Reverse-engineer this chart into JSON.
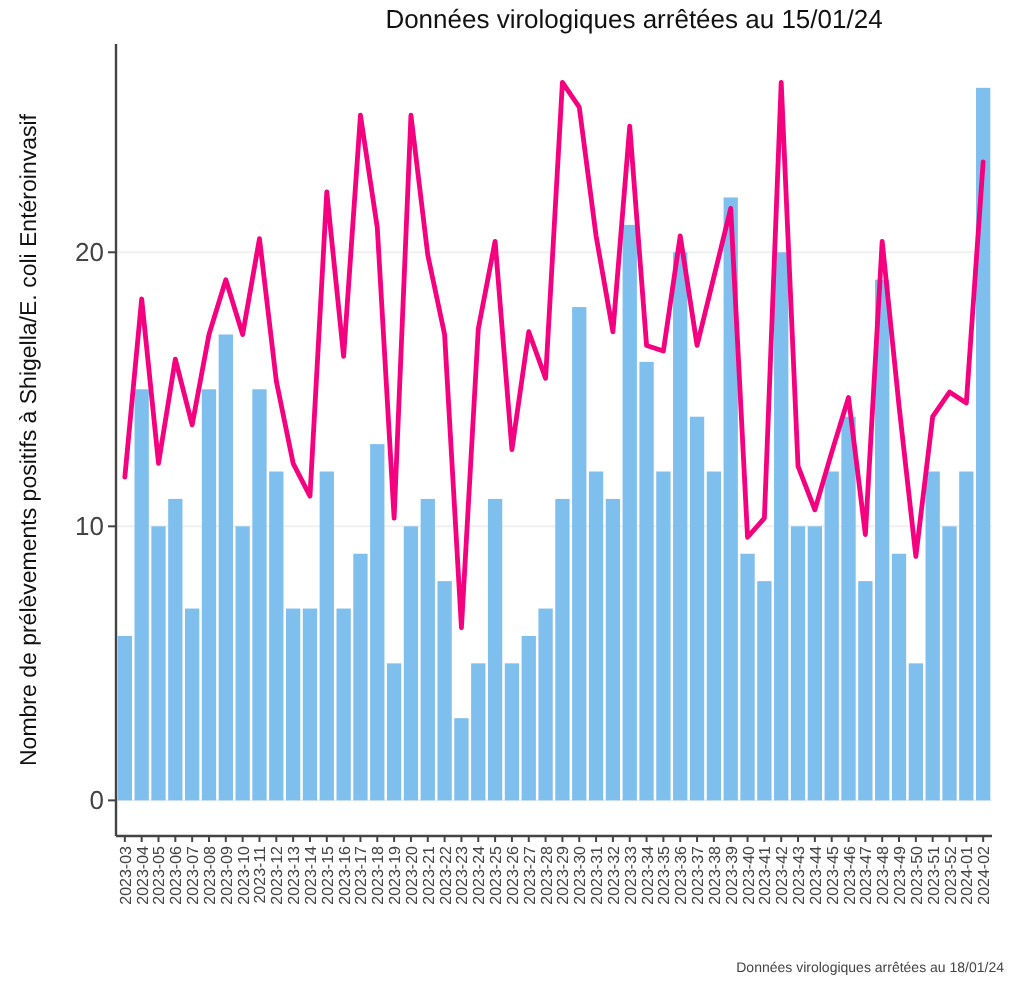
{
  "chart_data": {
    "type": "bar",
    "title": "Données virologiques arrêtées au  15/01/24",
    "ylabel": "Nombre de prélèvements positifs à Shigella/E. coli Entéroinvasif",
    "categories": [
      "2023-03",
      "2023-04",
      "2023-05",
      "2023-06",
      "2023-07",
      "2023-08",
      "2023-09",
      "2023-10",
      "2023-11",
      "2023-12",
      "2023-13",
      "2023-14",
      "2023-15",
      "2023-16",
      "2023-17",
      "2023-18",
      "2023-19",
      "2023-20",
      "2023-21",
      "2023-22",
      "2023-23",
      "2023-24",
      "2023-25",
      "2023-26",
      "2023-27",
      "2023-28",
      "2023-29",
      "2023-30",
      "2023-31",
      "2023-32",
      "2023-33",
      "2023-34",
      "2023-35",
      "2023-36",
      "2023-37",
      "2023-38",
      "2023-39",
      "2023-40",
      "2023-41",
      "2023-42",
      "2023-43",
      "2023-44",
      "2023-45",
      "2023-46",
      "2023-47",
      "2023-48",
      "2023-49",
      "2023-50",
      "2023-51",
      "2023-52",
      "2024-01",
      "2024-02"
    ],
    "series": [
      {
        "color": "#7fbfee",
        "values": [
          6,
          15,
          10,
          11,
          7,
          15,
          17,
          10,
          15,
          12,
          7,
          7,
          12,
          7,
          9,
          13,
          5,
          10,
          11,
          8,
          3,
          5,
          11,
          5,
          6,
          7,
          11,
          18,
          12,
          11,
          21,
          16,
          12,
          20,
          14,
          12,
          22,
          9,
          8,
          20,
          10,
          10,
          12,
          14,
          8,
          19,
          9,
          5,
          12,
          10,
          12,
          26
        ]
      },
      {
        "type": "line",
        "color": "#f5007f",
        "values": [
          11.8,
          18.3,
          12.3,
          16.1,
          13.7,
          17.0,
          19.0,
          17.0,
          20.5,
          15.3,
          12.3,
          11.1,
          22.2,
          16.2,
          25.0,
          20.9,
          10.3,
          25.0,
          19.9,
          17.0,
          6.3,
          17.2,
          20.4,
          12.8,
          17.1,
          15.4,
          26.2,
          25.3,
          20.6,
          17.1,
          24.6,
          16.6,
          16.4,
          20.6,
          16.6,
          19.1,
          21.6,
          9.6,
          10.3,
          26.2,
          12.2,
          10.6,
          12.7,
          14.7,
          9.7,
          20.4,
          14.4,
          8.9,
          14.0,
          14.9,
          14.5,
          23.3
        ]
      }
    ],
    "ylim": [
      -1.3,
      27.6
    ],
    "yticks": [
      0,
      10,
      20
    ],
    "grid": "y",
    "annotations": [
      "Données virologiques arrêtées au  18/01/24"
    ]
  }
}
